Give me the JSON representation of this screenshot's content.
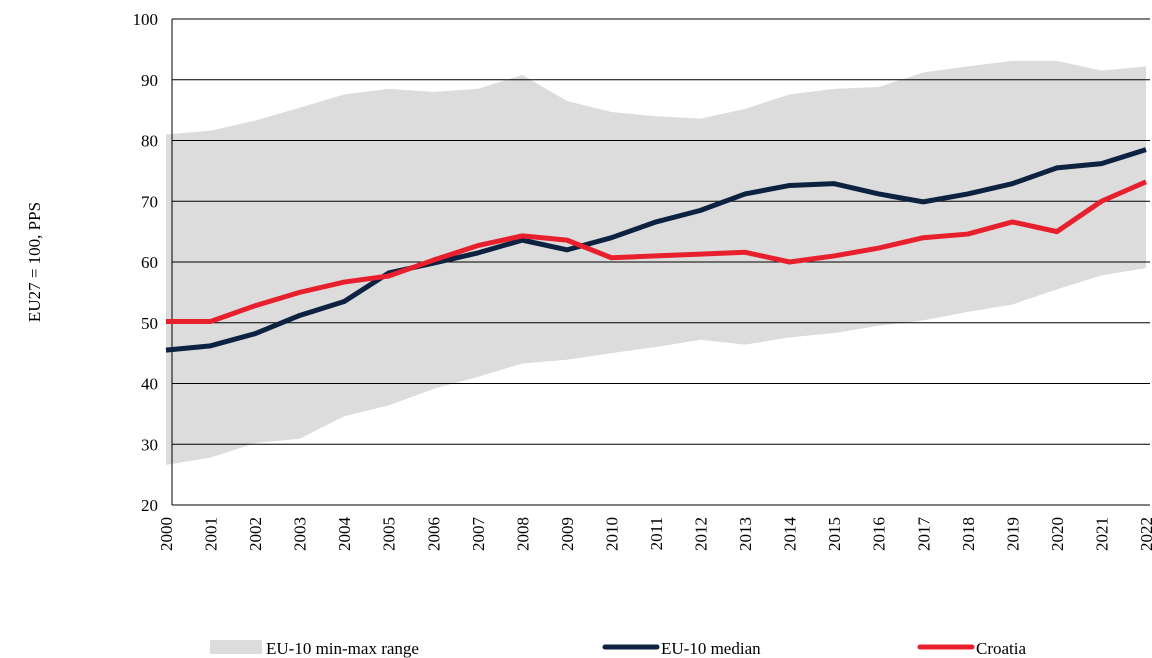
{
  "chart_data": {
    "type": "line",
    "y_label": "EU27 = 100, PPS",
    "categories": [
      "2000",
      "2001",
      "2002",
      "2003",
      "2004",
      "2005",
      "2006",
      "2007",
      "2008",
      "2009",
      "2010",
      "2011",
      "2012",
      "2013",
      "2014",
      "2015",
      "2016",
      "2017",
      "2018",
      "2019",
      "2020",
      "2021",
      "2022"
    ],
    "series": [
      {
        "name": "EU-10 min-max  range",
        "color": "#dcdcdc",
        "type": "range",
        "low": [
          26.6,
          27.8,
          30.2,
          30.9,
          34.6,
          36.4,
          39.1,
          41.1,
          43.3,
          43.9,
          45,
          46,
          47.2,
          46.4,
          47.6,
          48.3,
          49.5,
          50.4,
          51.8,
          53,
          55.5,
          57.8,
          59
        ],
        "high": [
          81,
          81.6,
          83.3,
          85.4,
          87.6,
          88.5,
          88,
          88.5,
          90.8,
          86.5,
          84.7,
          84,
          83.6,
          85.2,
          87.6,
          88.5,
          88.8,
          91.2,
          92.2,
          93.1,
          93.1,
          91.5,
          92.2
        ]
      },
      {
        "name": "EU-10 median",
        "color": "#0d2240",
        "values": [
          45.5,
          46.2,
          48.2,
          51.2,
          53.5,
          58.2,
          59.8,
          61.5,
          63.6,
          62,
          64,
          66.6,
          68.5,
          71.2,
          72.6,
          72.9,
          71.2,
          69.9,
          71.2,
          72.9,
          75.5,
          76.2,
          78.5
        ]
      },
      {
        "name": "Croatia",
        "color": "#e8202e",
        "values": [
          50.2,
          50.2,
          52.8,
          55,
          56.7,
          57.7,
          60.3,
          62.7,
          64.3,
          63.6,
          60.7,
          61,
          61.3,
          61.6,
          60,
          61,
          62.3,
          64,
          64.6,
          66.6,
          65,
          70,
          73.2
        ]
      }
    ],
    "ylim": [
      20,
      100
    ],
    "yticks": [
      20,
      30,
      40,
      50,
      60,
      70,
      80,
      90,
      100
    ],
    "grid": true,
    "legend": "bottom"
  }
}
